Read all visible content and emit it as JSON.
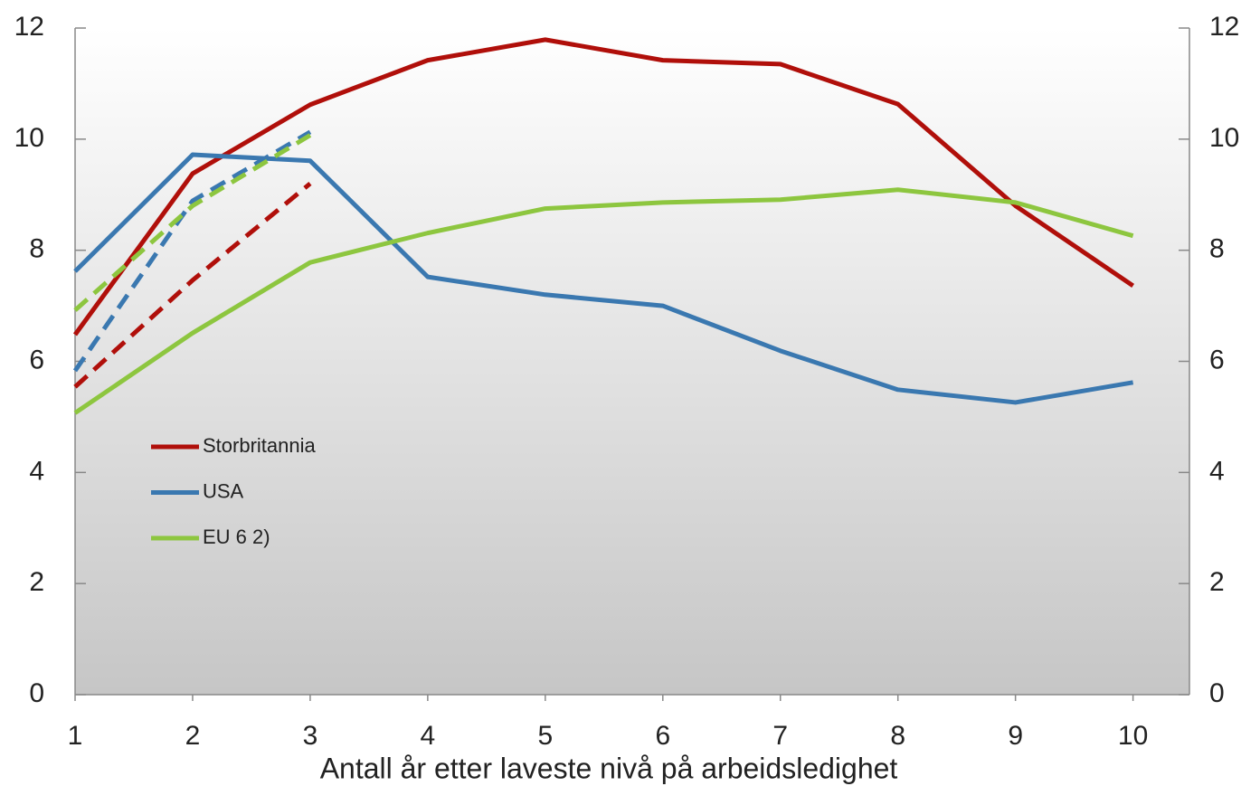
{
  "chart_data": {
    "type": "line",
    "xlabel": "Antall år etter laveste nivå på arbeidsledighet",
    "x": [
      1,
      2,
      3,
      4,
      5,
      6,
      7,
      8,
      9,
      10
    ],
    "xlim": [
      1,
      10.48
    ],
    "xticks": [
      1,
      2,
      3,
      4,
      5,
      6,
      7,
      8,
      9,
      10
    ],
    "ylim": [
      0,
      12
    ],
    "yticks": [
      0,
      2,
      4,
      6,
      8,
      10,
      12
    ],
    "y2lim": [
      0,
      12
    ],
    "y2ticks": [
      0,
      2,
      4,
      6,
      8,
      10,
      12
    ],
    "legend": "left",
    "series": [
      {
        "name": "Storbritannia",
        "color": "#b00f0a",
        "values": [
          6.48,
          9.38,
          10.62,
          11.42,
          11.79,
          11.42,
          11.35,
          10.63,
          8.8,
          7.36
        ]
      },
      {
        "name": "USA",
        "color": "#3a78b0",
        "values": [
          7.62,
          9.72,
          9.61,
          7.52,
          7.2,
          7.0,
          6.19,
          5.49,
          5.26,
          5.62
        ]
      },
      {
        "name": "EU 6 2)",
        "color": "#8dc63f",
        "values": [
          5.07,
          6.51,
          7.78,
          8.31,
          8.75,
          8.86,
          8.91,
          9.09,
          8.86,
          8.26
        ]
      },
      {
        "color": "#b00f0a",
        "dashed": true,
        "values": [
          5.54,
          7.46,
          9.2,
          null,
          null,
          null,
          null,
          null,
          null,
          null
        ]
      },
      {
        "color": "#3a78b0",
        "dashed": true,
        "values": [
          5.83,
          8.89,
          10.13,
          null,
          null,
          null,
          null,
          null,
          null,
          null
        ]
      },
      {
        "color": "#8dc63f",
        "dashed": true,
        "values": [
          6.92,
          8.8,
          10.07,
          null,
          null,
          null,
          null,
          null,
          null,
          null
        ]
      }
    ]
  }
}
